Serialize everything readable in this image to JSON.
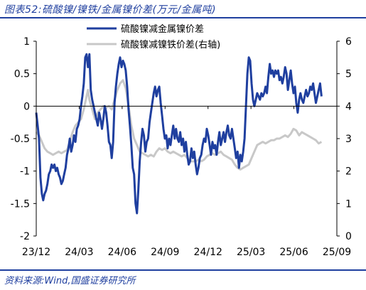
{
  "header": {
    "title": "图表52:硫酸镍/镍铁/金属镍价差(万元/金属吨)"
  },
  "footer": {
    "source": "资料来源:Wind,国盛证券研究所"
  },
  "chart_data": {
    "type": "line",
    "xlabel": "",
    "ylabel": "",
    "x_tick_labels": [
      "23/12",
      "24/03",
      "24/06",
      "24/09",
      "24/12",
      "25/03",
      "25/06",
      "25/09"
    ],
    "x_range": [
      0,
      21.5
    ],
    "ylim_left": [
      -2,
      1
    ],
    "yticks_left": [
      "1",
      "0.5",
      "0",
      "-0.5",
      "-1",
      "-1.5",
      "-2"
    ],
    "ylim_right": [
      0,
      6
    ],
    "yticks_right": [
      "6",
      "5",
      "4",
      "3",
      "2",
      "1",
      "0"
    ],
    "grid": false,
    "legend_position": "top-center",
    "series": [
      {
        "name": "硫酸镍减金属镍价差",
        "axis": "left",
        "color": "#1F3F9F",
        "points": [
          [
            0.0,
            -0.1
          ],
          [
            0.1,
            -0.3
          ],
          [
            0.2,
            -0.5
          ],
          [
            0.3,
            -1.1
          ],
          [
            0.4,
            -1.35
          ],
          [
            0.5,
            -1.45
          ],
          [
            0.6,
            -1.35
          ],
          [
            0.7,
            -1.3
          ],
          [
            0.8,
            -1.2
          ],
          [
            0.9,
            -1.05
          ],
          [
            1.0,
            -1.0
          ],
          [
            1.1,
            -0.9
          ],
          [
            1.2,
            -0.95
          ],
          [
            1.3,
            -0.9
          ],
          [
            1.4,
            -1.0
          ],
          [
            1.5,
            -0.95
          ],
          [
            1.6,
            -1.05
          ],
          [
            1.7,
            -1.1
          ],
          [
            1.8,
            -1.2
          ],
          [
            1.9,
            -1.15
          ],
          [
            2.0,
            -1.05
          ],
          [
            2.1,
            -0.95
          ],
          [
            2.2,
            -0.75
          ],
          [
            2.3,
            -0.65
          ],
          [
            2.4,
            -0.5
          ],
          [
            2.5,
            -0.7
          ],
          [
            2.6,
            -0.6
          ],
          [
            2.7,
            -0.45
          ],
          [
            2.8,
            -0.55
          ],
          [
            2.9,
            -0.35
          ],
          [
            3.0,
            -0.3
          ],
          [
            3.1,
            -0.2
          ],
          [
            3.2,
            0.0
          ],
          [
            3.3,
            0.15
          ],
          [
            3.4,
            0.35
          ],
          [
            3.5,
            0.75
          ],
          [
            3.6,
            0.8
          ],
          [
            3.7,
            0.6
          ],
          [
            3.8,
            0.8
          ],
          [
            3.9,
            0.25
          ],
          [
            4.0,
            0.1
          ],
          [
            4.1,
            0.0
          ],
          [
            4.2,
            -0.1
          ],
          [
            4.3,
            -0.2
          ],
          [
            4.4,
            -0.3
          ],
          [
            4.5,
            -0.1
          ],
          [
            4.6,
            -0.2
          ],
          [
            4.7,
            -0.35
          ],
          [
            4.8,
            -0.2
          ],
          [
            4.9,
            0.0
          ],
          [
            5.0,
            -0.1
          ],
          [
            5.1,
            -0.3
          ],
          [
            5.2,
            -0.55
          ],
          [
            5.3,
            -0.6
          ],
          [
            5.4,
            -0.8
          ],
          [
            5.5,
            -0.55
          ],
          [
            5.6,
            0.05
          ],
          [
            5.7,
            0.3
          ],
          [
            5.8,
            0.5
          ],
          [
            5.9,
            0.65
          ],
          [
            6.0,
            0.75
          ],
          [
            6.1,
            0.6
          ],
          [
            6.2,
            0.7
          ],
          [
            6.3,
            0.65
          ],
          [
            6.4,
            0.55
          ],
          [
            6.5,
            0.3
          ],
          [
            6.6,
            -0.05
          ],
          [
            6.7,
            -0.3
          ],
          [
            6.8,
            -0.6
          ],
          [
            6.9,
            -0.95
          ],
          [
            7.0,
            -1.05
          ],
          [
            7.1,
            -1.5
          ],
          [
            7.2,
            -1.65
          ],
          [
            7.3,
            -1.3
          ],
          [
            7.4,
            -0.85
          ],
          [
            7.5,
            -0.55
          ],
          [
            7.6,
            -0.35
          ],
          [
            7.7,
            -0.45
          ],
          [
            7.8,
            -0.7
          ],
          [
            7.9,
            -0.55
          ],
          [
            8.0,
            -0.5
          ],
          [
            8.1,
            -0.25
          ],
          [
            8.2,
            -0.1
          ],
          [
            8.3,
            0.05
          ],
          [
            8.4,
            0.2
          ],
          [
            8.5,
            0.3
          ],
          [
            8.6,
            0.15
          ],
          [
            8.7,
            0.25
          ],
          [
            8.8,
            0.3
          ],
          [
            8.9,
            0.05
          ],
          [
            9.0,
            -0.15
          ],
          [
            9.1,
            -0.35
          ],
          [
            9.2,
            -0.5
          ],
          [
            9.3,
            -0.45
          ],
          [
            9.4,
            -0.65
          ],
          [
            9.5,
            -0.5
          ],
          [
            9.6,
            -0.6
          ],
          [
            9.7,
            -0.45
          ],
          [
            9.8,
            -0.3
          ],
          [
            9.9,
            -0.5
          ],
          [
            10.0,
            -0.35
          ],
          [
            10.1,
            -0.5
          ],
          [
            10.2,
            -0.55
          ],
          [
            10.3,
            -0.4
          ],
          [
            10.4,
            -0.6
          ],
          [
            10.5,
            -0.5
          ],
          [
            10.6,
            -0.7
          ],
          [
            10.7,
            -0.55
          ],
          [
            10.8,
            -0.75
          ],
          [
            10.9,
            -0.9
          ],
          [
            11.0,
            -0.85
          ],
          [
            11.1,
            -0.65
          ],
          [
            11.2,
            -0.8
          ],
          [
            11.3,
            -0.7
          ],
          [
            11.4,
            -0.9
          ],
          [
            11.5,
            -1.05
          ],
          [
            11.6,
            -0.95
          ],
          [
            11.7,
            -0.8
          ],
          [
            11.8,
            -0.75
          ],
          [
            11.9,
            -0.6
          ],
          [
            12.0,
            -0.5
          ],
          [
            12.1,
            -0.55
          ],
          [
            12.2,
            -0.35
          ],
          [
            12.3,
            -0.45
          ],
          [
            12.4,
            -0.6
          ],
          [
            12.5,
            -0.75
          ],
          [
            12.6,
            -0.55
          ],
          [
            12.7,
            -0.65
          ],
          [
            12.8,
            -0.6
          ],
          [
            12.9,
            -0.75
          ],
          [
            13.0,
            -0.55
          ],
          [
            13.1,
            -0.4
          ],
          [
            13.2,
            -0.6
          ],
          [
            13.3,
            -0.5
          ],
          [
            13.4,
            -0.4
          ],
          [
            13.5,
            -0.55
          ],
          [
            13.6,
            -0.4
          ],
          [
            13.7,
            -0.3
          ],
          [
            13.8,
            -0.45
          ],
          [
            13.9,
            -0.5
          ],
          [
            14.0,
            -0.35
          ],
          [
            14.1,
            -0.5
          ],
          [
            14.2,
            -0.65
          ],
          [
            14.3,
            -0.8
          ],
          [
            14.4,
            -0.7
          ],
          [
            14.5,
            -0.95
          ],
          [
            14.6,
            -0.75
          ],
          [
            14.7,
            -0.85
          ],
          [
            14.8,
            -0.7
          ],
          [
            14.9,
            -0.5
          ],
          [
            15.0,
            0.0
          ],
          [
            15.1,
            0.5
          ],
          [
            15.2,
            0.75
          ],
          [
            15.3,
            0.7
          ],
          [
            15.4,
            0.35
          ],
          [
            15.5,
            0.1
          ],
          [
            15.6,
            0.0
          ],
          [
            15.7,
            0.1
          ],
          [
            15.8,
            0.2
          ],
          [
            15.9,
            0.15
          ],
          [
            16.0,
            0.1
          ],
          [
            16.1,
            0.2
          ],
          [
            16.2,
            0.15
          ],
          [
            16.3,
            0.2
          ],
          [
            16.4,
            0.3
          ],
          [
            16.5,
            0.2
          ],
          [
            16.6,
            0.45
          ],
          [
            16.7,
            0.65
          ],
          [
            16.8,
            0.5
          ],
          [
            16.9,
            0.55
          ],
          [
            17.0,
            0.45
          ],
          [
            17.1,
            0.55
          ],
          [
            17.2,
            0.5
          ],
          [
            17.3,
            0.55
          ],
          [
            17.4,
            0.4
          ],
          [
            17.5,
            0.45
          ],
          [
            17.6,
            0.35
          ],
          [
            17.7,
            0.45
          ],
          [
            17.8,
            0.6
          ],
          [
            17.9,
            0.5
          ],
          [
            18.0,
            0.25
          ],
          [
            18.1,
            0.4
          ],
          [
            18.2,
            0.55
          ],
          [
            18.3,
            0.35
          ],
          [
            18.4,
            0.2
          ],
          [
            18.5,
            0.3
          ],
          [
            18.6,
            0.05
          ],
          [
            18.7,
            -0.1
          ],
          [
            18.8,
            0.1
          ],
          [
            18.9,
            0.2
          ],
          [
            19.0,
            0.1
          ],
          [
            19.1,
            0.05
          ],
          [
            19.2,
            0.15
          ],
          [
            19.3,
            0.25
          ],
          [
            19.4,
            0.15
          ],
          [
            19.5,
            0.2
          ],
          [
            19.6,
            0.3
          ],
          [
            19.7,
            0.25
          ],
          [
            19.8,
            0.35
          ],
          [
            19.9,
            0.2
          ],
          [
            20.0,
            0.05
          ],
          [
            20.1,
            0.15
          ],
          [
            20.2,
            0.25
          ],
          [
            20.3,
            0.35
          ],
          [
            20.4,
            0.15
          ]
        ]
      },
      {
        "name": "硫酸镍减镍铁价差(右轴)",
        "axis": "right",
        "color": "#C8C8C8",
        "points": [
          [
            0.0,
            3.2
          ],
          [
            0.2,
            3.1
          ],
          [
            0.4,
            2.9
          ],
          [
            0.6,
            2.7
          ],
          [
            0.8,
            2.6
          ],
          [
            1.0,
            2.55
          ],
          [
            1.2,
            2.5
          ],
          [
            1.4,
            2.55
          ],
          [
            1.6,
            2.6
          ],
          [
            1.8,
            2.55
          ],
          [
            2.0,
            2.6
          ],
          [
            2.2,
            2.65
          ],
          [
            2.4,
            2.9
          ],
          [
            2.6,
            3.2
          ],
          [
            2.8,
            3.4
          ],
          [
            3.0,
            3.5
          ],
          [
            3.2,
            3.6
          ],
          [
            3.4,
            3.9
          ],
          [
            3.6,
            4.3
          ],
          [
            3.7,
            4.5
          ],
          [
            3.8,
            4.2
          ],
          [
            4.0,
            3.9
          ],
          [
            4.2,
            3.6
          ],
          [
            4.4,
            3.8
          ],
          [
            4.6,
            3.9
          ],
          [
            4.8,
            4.0
          ],
          [
            5.0,
            3.95
          ],
          [
            5.2,
            4.0
          ],
          [
            5.4,
            3.9
          ],
          [
            5.6,
            4.2
          ],
          [
            5.8,
            4.5
          ],
          [
            6.0,
            4.7
          ],
          [
            6.2,
            4.8
          ],
          [
            6.4,
            4.55
          ],
          [
            6.6,
            4.0
          ],
          [
            6.8,
            3.4
          ],
          [
            7.0,
            3.0
          ],
          [
            7.2,
            2.8
          ],
          [
            7.4,
            2.6
          ],
          [
            7.6,
            2.55
          ],
          [
            7.8,
            2.5
          ],
          [
            8.0,
            2.45
          ],
          [
            8.2,
            2.5
          ],
          [
            8.4,
            2.45
          ],
          [
            8.6,
            2.6
          ],
          [
            8.8,
            2.7
          ],
          [
            9.0,
            2.65
          ],
          [
            9.2,
            2.7
          ],
          [
            9.4,
            2.6
          ],
          [
            9.6,
            2.55
          ],
          [
            9.8,
            2.6
          ],
          [
            10.0,
            2.55
          ],
          [
            10.2,
            2.5
          ],
          [
            10.4,
            2.45
          ],
          [
            10.6,
            2.5
          ],
          [
            10.8,
            2.4
          ],
          [
            11.0,
            2.3
          ],
          [
            11.2,
            2.3
          ],
          [
            11.4,
            2.3
          ],
          [
            11.6,
            2.35
          ],
          [
            11.8,
            2.3
          ],
          [
            12.0,
            2.35
          ],
          [
            12.2,
            2.45
          ],
          [
            12.4,
            2.5
          ],
          [
            12.6,
            2.55
          ],
          [
            12.8,
            2.5
          ],
          [
            13.0,
            2.55
          ],
          [
            13.2,
            2.6
          ],
          [
            13.4,
            2.5
          ],
          [
            13.6,
            2.45
          ],
          [
            13.8,
            2.4
          ],
          [
            14.0,
            2.35
          ],
          [
            14.2,
            2.2
          ],
          [
            14.4,
            2.1
          ],
          [
            14.6,
            2.05
          ],
          [
            14.8,
            2.1
          ],
          [
            15.0,
            2.15
          ],
          [
            15.2,
            2.2
          ],
          [
            15.4,
            2.4
          ],
          [
            15.6,
            2.6
          ],
          [
            15.8,
            2.8
          ],
          [
            16.0,
            2.85
          ],
          [
            16.2,
            2.9
          ],
          [
            16.4,
            2.85
          ],
          [
            16.6,
            2.9
          ],
          [
            16.8,
            2.95
          ],
          [
            17.0,
            2.95
          ],
          [
            17.2,
            3.0
          ],
          [
            17.4,
            3.0
          ],
          [
            17.6,
            3.05
          ],
          [
            17.8,
            3.1
          ],
          [
            18.0,
            3.05
          ],
          [
            18.2,
            3.15
          ],
          [
            18.4,
            3.3
          ],
          [
            18.6,
            3.25
          ],
          [
            18.8,
            3.1
          ],
          [
            19.0,
            3.2
          ],
          [
            19.2,
            3.15
          ],
          [
            19.4,
            3.1
          ],
          [
            19.6,
            3.05
          ],
          [
            19.8,
            3.0
          ],
          [
            20.0,
            2.95
          ],
          [
            20.2,
            2.85
          ],
          [
            20.4,
            2.9
          ]
        ]
      }
    ]
  }
}
